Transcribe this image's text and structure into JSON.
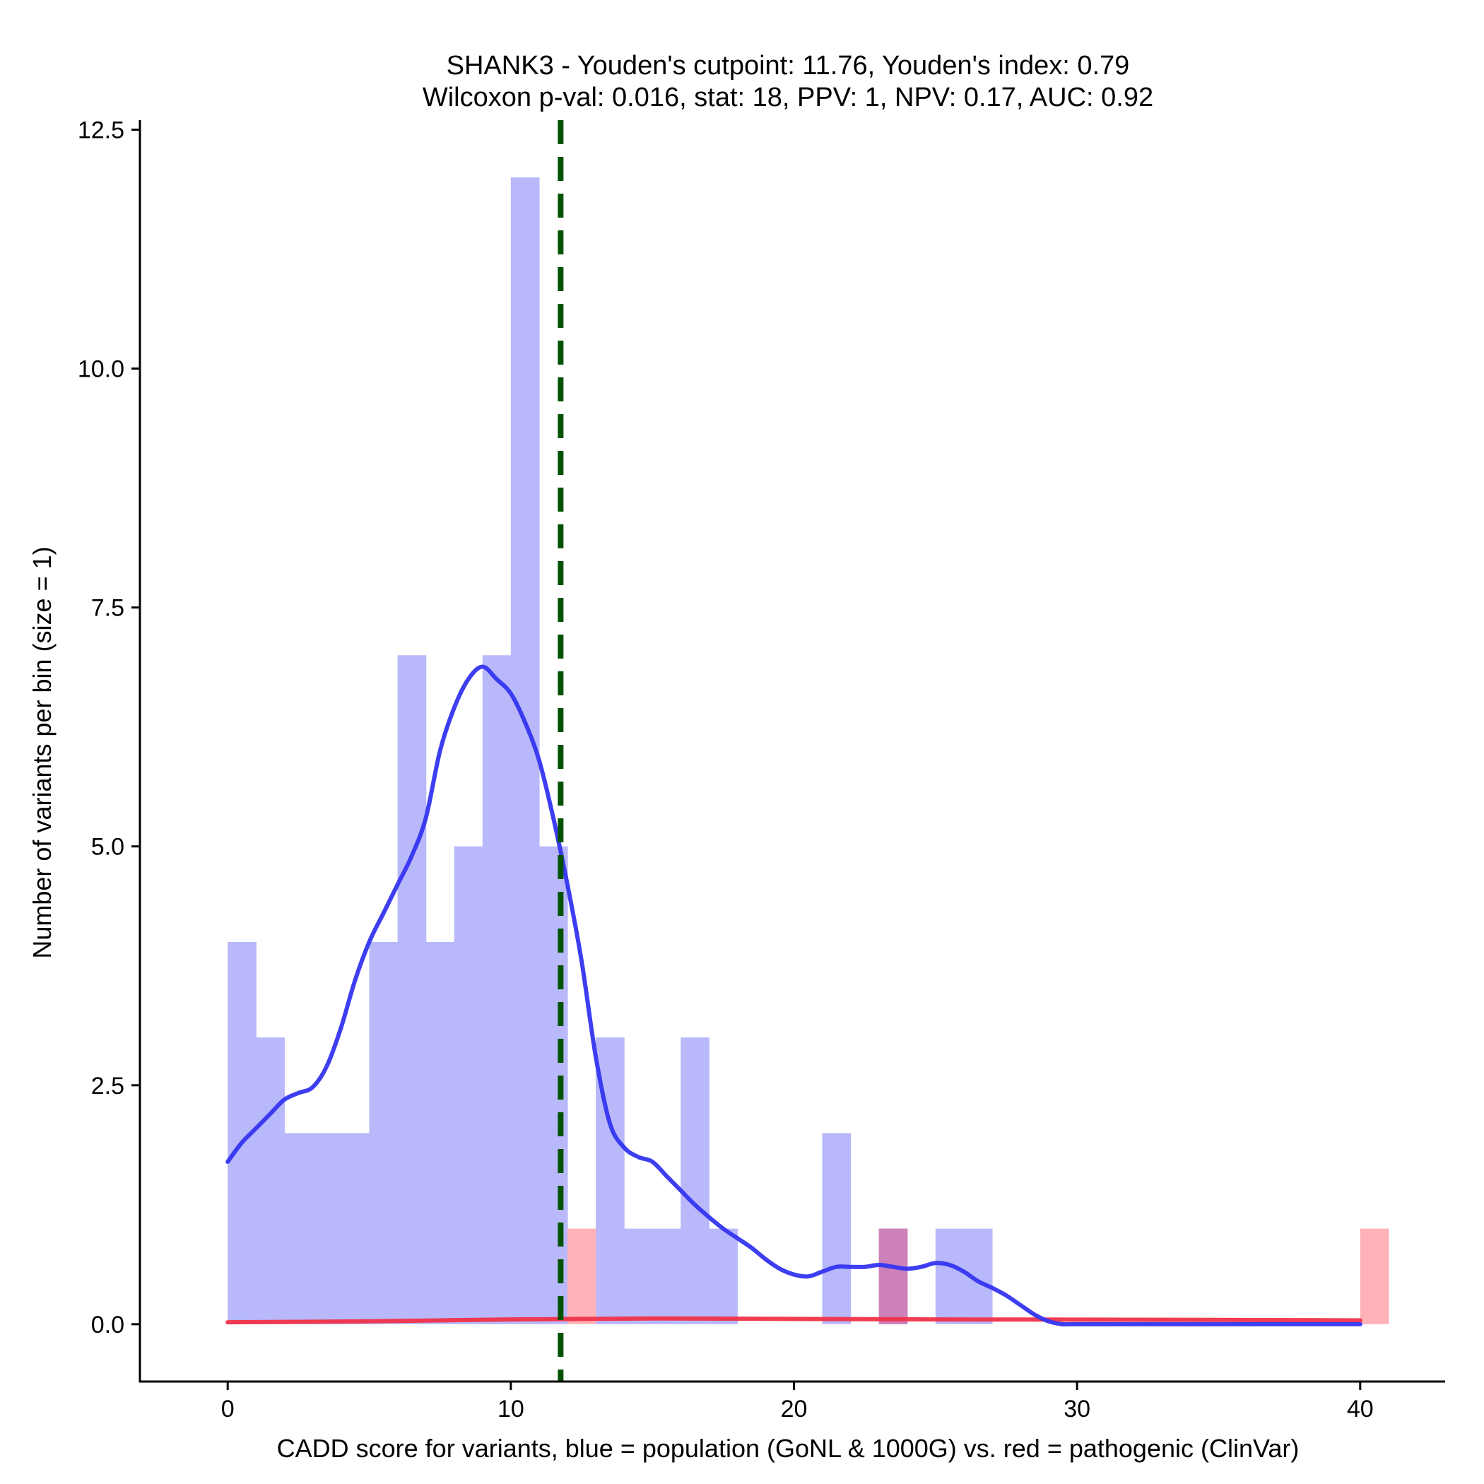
{
  "chart_data": {
    "type": "histogram",
    "title_line1": "SHANK3 - Youden's cutpoint: 11.76, Youden's index: 0.79",
    "title_line2": "Wilcoxon p-val: 0.016, stat: 18, PPV: 1, NPV: 0.17, AUC: 0.92",
    "xlabel": "CADD score for variants, blue = population (GoNL & 1000G) vs. red = pathogenic (ClinVar)",
    "ylabel": "Number of variants per bin (size = 1)",
    "xlim": [
      -3.1,
      43
    ],
    "ylim": [
      -0.6,
      12.6
    ],
    "x_ticks": [
      0,
      10,
      20,
      30,
      40
    ],
    "x_tick_labels": [
      "0",
      "10",
      "20",
      "30",
      "40"
    ],
    "y_ticks": [
      0,
      2.5,
      5,
      7.5,
      10,
      12.5
    ],
    "y_tick_labels": [
      "0.0",
      "2.5",
      "5.0",
      "7.5",
      "10.0",
      "12.5"
    ],
    "bin_width": 1,
    "colors": {
      "population_bar": "#b8b8fa",
      "pathogenic_bar": "#ffb3b8",
      "overlap_bar": "#cc82b8",
      "population_line": "#3434f0",
      "pathogenic_line": "#f03248",
      "cutpoint_line": "#005200"
    },
    "cutpoint": 11.76,
    "series": [
      {
        "name": "population (GoNL & 1000G)",
        "bins": [
          {
            "x": 0,
            "count": 4
          },
          {
            "x": 1,
            "count": 3
          },
          {
            "x": 2,
            "count": 2
          },
          {
            "x": 3,
            "count": 2
          },
          {
            "x": 4,
            "count": 2
          },
          {
            "x": 5,
            "count": 4
          },
          {
            "x": 6,
            "count": 7
          },
          {
            "x": 7,
            "count": 4
          },
          {
            "x": 8,
            "count": 5
          },
          {
            "x": 9,
            "count": 7
          },
          {
            "x": 10,
            "count": 12
          },
          {
            "x": 11,
            "count": 5
          },
          {
            "x": 13,
            "count": 3
          },
          {
            "x": 14,
            "count": 1
          },
          {
            "x": 15,
            "count": 1
          },
          {
            "x": 16,
            "count": 3
          },
          {
            "x": 17,
            "count": 1
          },
          {
            "x": 21,
            "count": 2
          },
          {
            "x": 23,
            "count": 1
          },
          {
            "x": 25,
            "count": 1
          },
          {
            "x": 26,
            "count": 1
          }
        ],
        "density": [
          [
            0,
            1.7
          ],
          [
            0.5,
            1.9
          ],
          [
            1,
            2.05
          ],
          [
            1.5,
            2.2
          ],
          [
            2,
            2.35
          ],
          [
            2.5,
            2.42
          ],
          [
            3,
            2.48
          ],
          [
            3.5,
            2.7
          ],
          [
            4,
            3.1
          ],
          [
            4.5,
            3.6
          ],
          [
            5,
            4.0
          ],
          [
            5.5,
            4.3
          ],
          [
            6,
            4.6
          ],
          [
            6.5,
            4.9
          ],
          [
            7,
            5.3
          ],
          [
            7.5,
            6.0
          ],
          [
            8,
            6.45
          ],
          [
            8.5,
            6.75
          ],
          [
            9,
            6.88
          ],
          [
            9.5,
            6.75
          ],
          [
            10,
            6.6
          ],
          [
            10.5,
            6.3
          ],
          [
            11,
            5.9
          ],
          [
            11.5,
            5.3
          ],
          [
            12,
            4.6
          ],
          [
            12.5,
            3.8
          ],
          [
            13,
            2.8
          ],
          [
            13.5,
            2.1
          ],
          [
            14,
            1.85
          ],
          [
            14.5,
            1.75
          ],
          [
            15,
            1.7
          ],
          [
            15.5,
            1.55
          ],
          [
            16,
            1.4
          ],
          [
            16.5,
            1.25
          ],
          [
            17,
            1.12
          ],
          [
            17.5,
            1.0
          ],
          [
            18,
            0.9
          ],
          [
            18.5,
            0.8
          ],
          [
            19,
            0.68
          ],
          [
            19.5,
            0.58
          ],
          [
            20,
            0.52
          ],
          [
            20.5,
            0.5
          ],
          [
            21,
            0.55
          ],
          [
            21.5,
            0.6
          ],
          [
            22,
            0.6
          ],
          [
            22.5,
            0.6
          ],
          [
            23,
            0.62
          ],
          [
            23.5,
            0.6
          ],
          [
            24,
            0.58
          ],
          [
            24.5,
            0.6
          ],
          [
            25,
            0.64
          ],
          [
            25.5,
            0.62
          ],
          [
            26,
            0.55
          ],
          [
            26.5,
            0.45
          ],
          [
            27,
            0.38
          ],
          [
            27.5,
            0.3
          ],
          [
            28,
            0.2
          ],
          [
            28.5,
            0.1
          ],
          [
            29,
            0.03
          ],
          [
            29.5,
            0.0
          ],
          [
            30,
            0.0
          ],
          [
            35,
            0.0
          ],
          [
            40,
            0.0
          ]
        ]
      },
      {
        "name": "pathogenic (ClinVar)",
        "bins": [
          {
            "x": 12,
            "count": 1
          },
          {
            "x": 23,
            "count": 1
          },
          {
            "x": 40,
            "count": 1
          }
        ],
        "density": [
          [
            0,
            0.02
          ],
          [
            5,
            0.03
          ],
          [
            10,
            0.05
          ],
          [
            15,
            0.06
          ],
          [
            20,
            0.055
          ],
          [
            25,
            0.05
          ],
          [
            30,
            0.048
          ],
          [
            35,
            0.045
          ],
          [
            40,
            0.04
          ]
        ]
      }
    ]
  }
}
